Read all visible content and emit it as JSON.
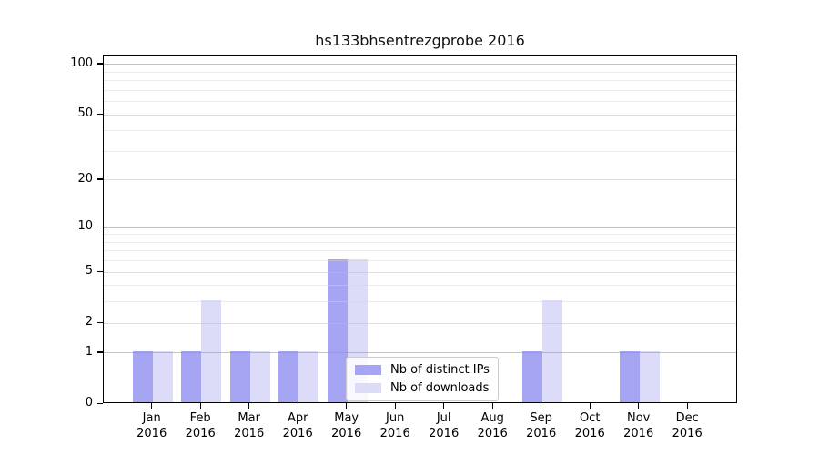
{
  "title": "hs133bhsentrezgprobe 2016",
  "chart_data": {
    "type": "bar",
    "title": "hs133bhsentrezgprobe 2016",
    "categories": [
      "Jan",
      "Feb",
      "Mar",
      "Apr",
      "May",
      "Jun",
      "Jul",
      "Aug",
      "Sep",
      "Oct",
      "Nov",
      "Dec"
    ],
    "category_year": "2016",
    "series": [
      {
        "name": "Nb of distinct IPs",
        "color": "#a5a5f3",
        "values": [
          1,
          1,
          1,
          1,
          6,
          0,
          0,
          0,
          1,
          0,
          1,
          0
        ]
      },
      {
        "name": "Nb of downloads",
        "color": "#dcdcf8",
        "values": [
          1,
          3,
          1,
          1,
          6,
          0,
          0,
          0,
          3,
          0,
          1,
          0
        ]
      }
    ],
    "xlabel": "",
    "ylabel": "",
    "yscale": "log1p",
    "ylim": [
      0,
      113
    ],
    "yticks": [
      0,
      1,
      2,
      5,
      10,
      20,
      50,
      100
    ],
    "major_gridlines": [
      1,
      10,
      100
    ],
    "mid_gridlines": [
      2,
      5,
      20,
      50
    ],
    "minor_gridlines": [
      3,
      4,
      6,
      7,
      8,
      9,
      30,
      40,
      60,
      70,
      80,
      90
    ],
    "grid": "on",
    "legend_position": "lower center"
  },
  "colors": {
    "background": "#ffffff",
    "spine": "#000000",
    "bar_distinct_ips": "#a5a5f3",
    "bar_downloads": "#dcdcf8",
    "grid_major": "#c8c8c8",
    "grid_minor": "#ececec"
  }
}
